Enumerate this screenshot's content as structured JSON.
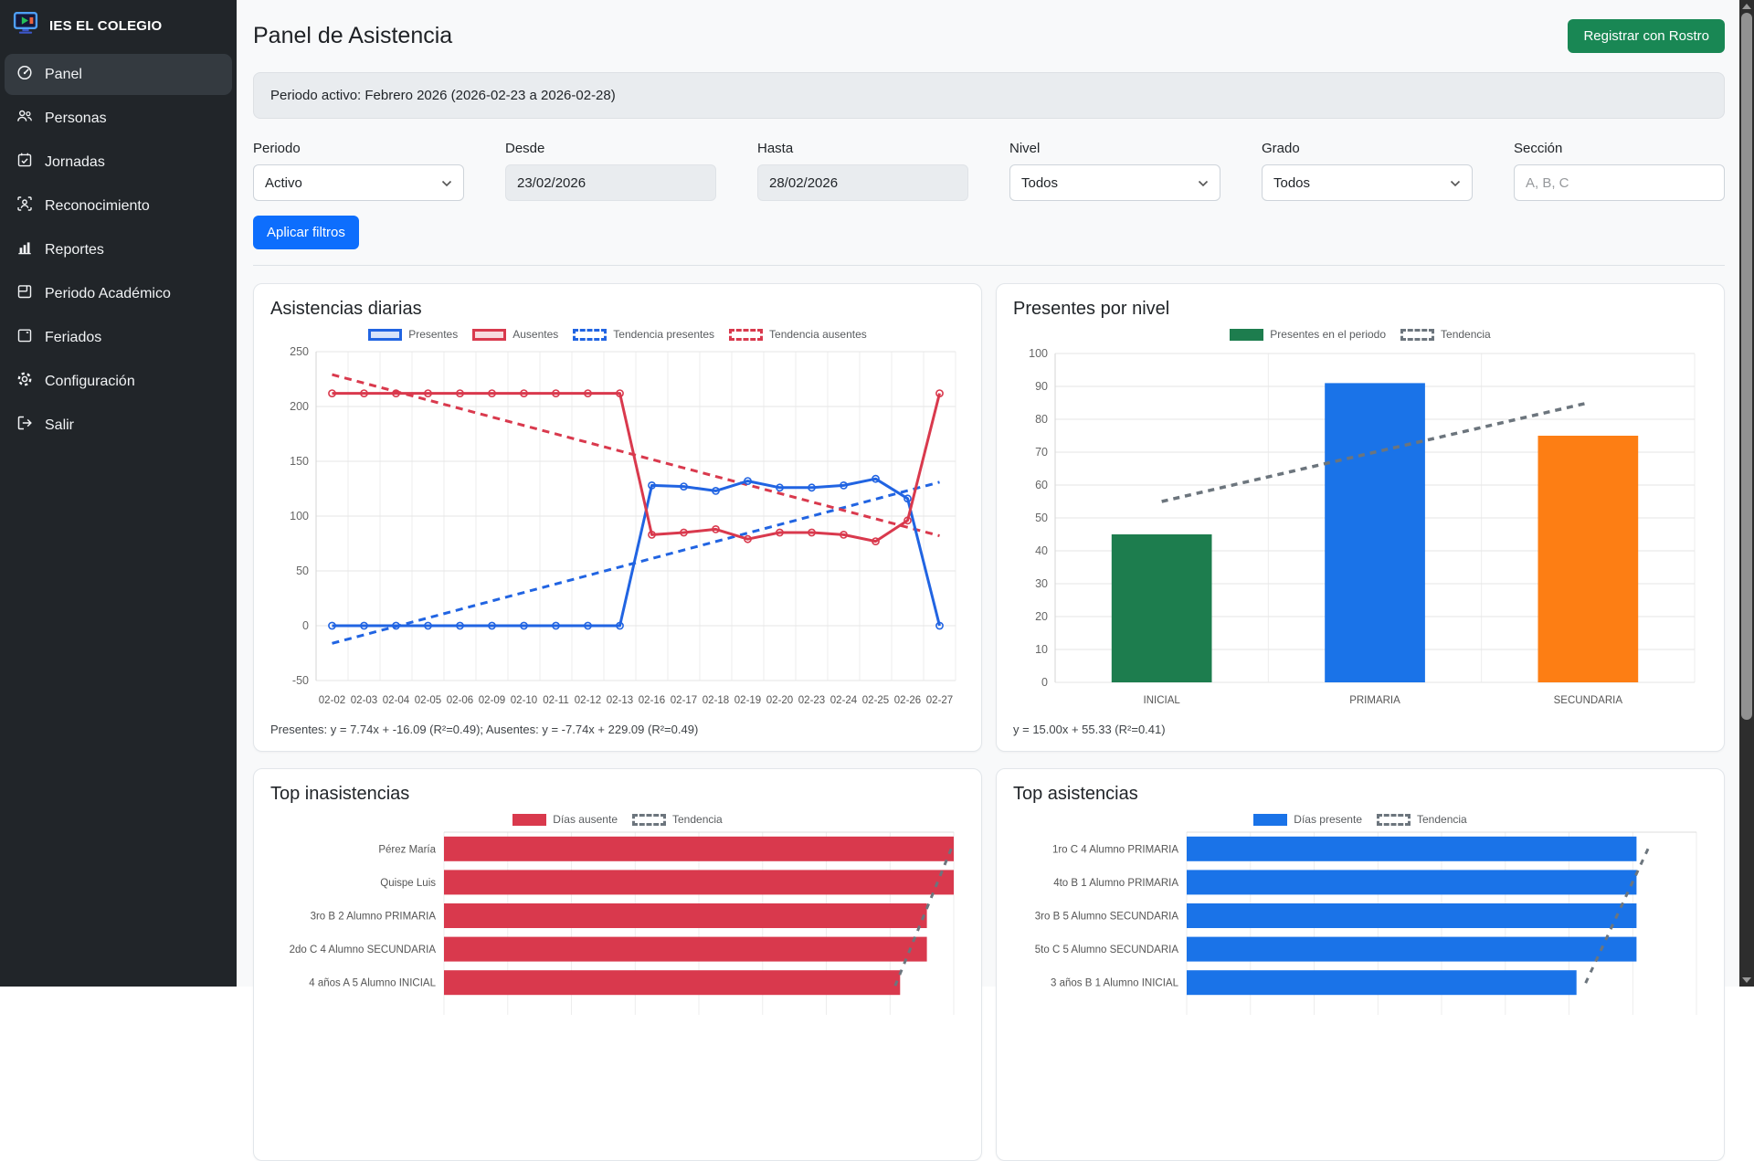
{
  "app": {
    "brand": "IES EL COLEGIO",
    "title": "Panel de Asistencia",
    "register_button": "Registrar con Rostro"
  },
  "theme": {
    "sidebar_bg": "#212529",
    "success_green": "#198754",
    "primary_blue": "#0d6efd",
    "presentes_blue": "#2164e2",
    "ausentes_red": "#d9394d",
    "nivel_green": "#1d7d4e",
    "nivel_blue": "#1a73e8",
    "nivel_orange": "#fd7e14",
    "trend_gray": "#6c757d"
  },
  "sidebar": {
    "items": [
      {
        "label": "Panel",
        "icon": "gauge",
        "active": true
      },
      {
        "label": "Personas",
        "icon": "people",
        "active": false
      },
      {
        "label": "Jornadas",
        "icon": "calendar-check",
        "active": false
      },
      {
        "label": "Reconocimiento",
        "icon": "face-scan",
        "active": false
      },
      {
        "label": "Reportes",
        "icon": "bar-chart",
        "active": false
      },
      {
        "label": "Periodo Académico",
        "icon": "calendar-range",
        "active": false
      },
      {
        "label": "Feriados",
        "icon": "calendar",
        "active": false
      },
      {
        "label": "Configuración",
        "icon": "gear",
        "active": false
      },
      {
        "label": "Salir",
        "icon": "logout",
        "active": false
      }
    ]
  },
  "alert": {
    "text": "Periodo activo: Febrero 2026 (2026-02-23 a 2026-02-28)"
  },
  "filters": {
    "periodo": {
      "label": "Periodo",
      "value": "Activo"
    },
    "desde": {
      "label": "Desde",
      "value": "23/02/2026"
    },
    "hasta": {
      "label": "Hasta",
      "value": "28/02/2026"
    },
    "nivel": {
      "label": "Nivel",
      "value": "Todos"
    },
    "grado": {
      "label": "Grado",
      "value": "Todos"
    },
    "seccion": {
      "label": "Sección",
      "placeholder": "A, B, C"
    },
    "apply_button": "Aplicar filtros"
  },
  "chart_data": [
    {
      "id": "asistencias-diarias",
      "type": "line",
      "title": "Asistencias diarias",
      "categories": [
        "02-02",
        "02-03",
        "02-04",
        "02-05",
        "02-06",
        "02-09",
        "02-10",
        "02-11",
        "02-12",
        "02-13",
        "02-16",
        "02-17",
        "02-18",
        "02-19",
        "02-20",
        "02-23",
        "02-24",
        "02-25",
        "02-26",
        "02-27"
      ],
      "series": [
        {
          "name": "Presentes",
          "color": "#2164e2",
          "values": [
            0,
            0,
            0,
            0,
            0,
            0,
            0,
            0,
            0,
            0,
            128,
            127,
            123,
            132,
            126,
            126,
            128,
            134,
            116,
            0
          ]
        },
        {
          "name": "Ausentes",
          "color": "#d9394d",
          "values": [
            212,
            212,
            212,
            212,
            212,
            212,
            212,
            212,
            212,
            212,
            83,
            85,
            88,
            79,
            85,
            85,
            83,
            77,
            96,
            212
          ]
        }
      ],
      "trends": [
        {
          "name": "Tendencia presentes",
          "color": "#2164e2",
          "start": -16.09,
          "end": 130.97
        },
        {
          "name": "Tendencia ausentes",
          "color": "#d9394d",
          "start": 229.09,
          "end": 82.03
        }
      ],
      "legend": [
        {
          "label": "Presentes",
          "color": "#2164e2",
          "style": "outline"
        },
        {
          "label": "Ausentes",
          "color": "#d9394d",
          "style": "outline"
        },
        {
          "label": "Tendencia presentes",
          "color": "#2164e2",
          "style": "dashed"
        },
        {
          "label": "Tendencia ausentes",
          "color": "#d9394d",
          "style": "dashed"
        }
      ],
      "ylim": [
        -50,
        250
      ],
      "ytick": 50,
      "grid": true,
      "annotation": "Presentes: y = 7.74x + -16.09 (R²=0.49); Ausentes: y = -7.74x + 229.09 (R²=0.49)"
    },
    {
      "id": "presentes-por-nivel",
      "type": "bar",
      "title": "Presentes por nivel",
      "categories": [
        "INICIAL",
        "PRIMARIA",
        "SECUNDARIA"
      ],
      "values": [
        45,
        91,
        75
      ],
      "bar_colors": [
        "#1d7d4e",
        "#1a73e8",
        "#fd7e14"
      ],
      "legend": [
        {
          "label": "Presentes en el periodo",
          "color": "#1d7d4e",
          "style": "solid"
        },
        {
          "label": "Tendencia",
          "color": "#6c757d",
          "style": "dashed"
        }
      ],
      "trend": {
        "start": 55,
        "end": 85,
        "color": "#6c757d"
      },
      "ylim": [
        0,
        100
      ],
      "ytick": 10,
      "grid": true,
      "annotation": "y = 15.00x + 55.33 (R²=0.41)"
    },
    {
      "id": "top-inasistencias",
      "type": "hbar",
      "title": "Top inasistencias",
      "categories": [
        "Pérez María",
        "Quispe Luis",
        "3ro B 2 Alumno PRIMARIA",
        "2do C 4 Alumno SECUNDARIA",
        "4 años A 5 Alumno INICIAL"
      ],
      "values": [
        19,
        19,
        18,
        18,
        17
      ],
      "xlim": [
        0,
        19
      ],
      "bar_color": "#d9394d",
      "legend": [
        {
          "label": "Días ausente",
          "color": "#d9394d",
          "style": "solid"
        },
        {
          "label": "Tendencia",
          "color": "#6c757d",
          "style": "dashed"
        }
      ],
      "trend": {
        "start_frac": 0.995,
        "end_frac": 0.885,
        "color": "#6c757d"
      },
      "grid": true
    },
    {
      "id": "top-asistencias",
      "type": "hbar",
      "title": "Top asistencias",
      "categories": [
        "1ro C 4 Alumno PRIMARIA",
        "4to B 1 Alumno PRIMARIA",
        "3ro B 5 Alumno SECUNDARIA",
        "5to C 5 Alumno SECUNDARIA",
        "3 años B 1 Alumno INICIAL"
      ],
      "values": [
        15,
        15,
        15,
        15,
        13
      ],
      "xlim": [
        0,
        17
      ],
      "bar_color": "#1a73e8",
      "legend": [
        {
          "label": "Días presente",
          "color": "#1a73e8",
          "style": "solid"
        },
        {
          "label": "Tendencia",
          "color": "#6c757d",
          "style": "dashed"
        }
      ],
      "trend": {
        "start_frac": 0.905,
        "end_frac": 0.78,
        "color": "#6c757d"
      },
      "grid": true
    }
  ]
}
